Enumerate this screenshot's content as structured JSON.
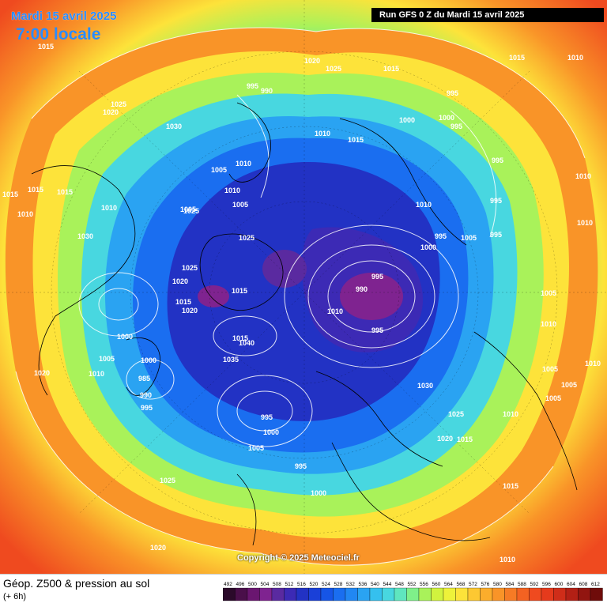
{
  "header": {
    "date": "Mardi 15 avril 2025",
    "time": "7:00 locale",
    "run": "Run GFS 0 Z du Mardi 15 avril 2025"
  },
  "footer": {
    "product": "Géop. Z500 & pression au sol",
    "offset": "(+ 6h)",
    "copyright": "Copyright © 2025 Meteociel.fr"
  },
  "legend": {
    "ticks": [
      "492",
      "496",
      "500",
      "504",
      "508",
      "512",
      "516",
      "520",
      "524",
      "528",
      "532",
      "536",
      "540",
      "544",
      "548",
      "552",
      "556",
      "560",
      "564",
      "568",
      "572",
      "576",
      "580",
      "584",
      "588",
      "592",
      "596",
      "600",
      "604",
      "608",
      "612"
    ],
    "colors": [
      "#2b0a2a",
      "#4a0f4a",
      "#6a1670",
      "#7f2390",
      "#5a2aa0",
      "#3c2ab5",
      "#2232c4",
      "#1a40d8",
      "#1655e6",
      "#1a6ef0",
      "#2187f3",
      "#2aa3f2",
      "#35c0ee",
      "#48d7e0",
      "#5fe6bf",
      "#7ff08a",
      "#a9f25a",
      "#d1f33e",
      "#eef23a",
      "#fde33a",
      "#fdc832",
      "#fbad2c",
      "#f99428",
      "#f67b25",
      "#f36222",
      "#ef4a1f",
      "#e53a1c",
      "#cf2d19",
      "#b32015",
      "#921510",
      "#6f0c0a"
    ]
  },
  "pressure_labels": [
    {
      "v": "1015"
    },
    {
      "v": "1010"
    },
    {
      "v": "1020"
    },
    {
      "v": "1025"
    },
    {
      "v": "1015"
    },
    {
      "v": "990"
    },
    {
      "v": "995"
    },
    {
      "v": "1015"
    },
    {
      "v": "1010"
    },
    {
      "v": "1020"
    },
    {
      "v": "1025"
    },
    {
      "v": "1030"
    },
    {
      "v": "1000"
    },
    {
      "v": "995"
    },
    {
      "v": "1015"
    },
    {
      "v": "1010"
    },
    {
      "v": "1010"
    },
    {
      "v": "1005"
    },
    {
      "v": "1005"
    },
    {
      "v": "1015"
    },
    {
      "v": "1015"
    },
    {
      "v": "1015"
    },
    {
      "v": "1010"
    },
    {
      "v": "1010"
    },
    {
      "v": "1025"
    },
    {
      "v": "1010"
    },
    {
      "v": "1005"
    },
    {
      "v": "1010"
    },
    {
      "v": "995"
    },
    {
      "v": "995"
    },
    {
      "v": "1030"
    },
    {
      "v": "995"
    },
    {
      "v": "1005"
    },
    {
      "v": "1000"
    },
    {
      "v": "1025"
    },
    {
      "v": "1025"
    },
    {
      "v": "995"
    },
    {
      "v": "990"
    },
    {
      "v": "1020"
    },
    {
      "v": "1010"
    },
    {
      "v": "1015"
    },
    {
      "v": "1005"
    },
    {
      "v": "995"
    },
    {
      "v": "1015"
    },
    {
      "v": "1010"
    },
    {
      "v": "1020"
    },
    {
      "v": "1000"
    },
    {
      "v": "1005"
    },
    {
      "v": "1000"
    },
    {
      "v": "985"
    },
    {
      "v": "990"
    },
    {
      "v": "995"
    },
    {
      "v": "1020"
    },
    {
      "v": "1040"
    },
    {
      "v": "1035"
    },
    {
      "v": "1015"
    },
    {
      "v": "995"
    },
    {
      "v": "1000"
    },
    {
      "v": "1005"
    },
    {
      "v": "995"
    },
    {
      "v": "1000"
    },
    {
      "v": "1030"
    },
    {
      "v": "1025"
    },
    {
      "v": "1020"
    },
    {
      "v": "1015"
    },
    {
      "v": "1005"
    },
    {
      "v": "1005"
    },
    {
      "v": "1010"
    },
    {
      "v": "1005"
    },
    {
      "v": "1010"
    },
    {
      "v": "1015"
    },
    {
      "v": "1025"
    },
    {
      "v": "1020"
    },
    {
      "v": "1010"
    },
    {
      "v": "1010"
    },
    {
      "v": "995"
    },
    {
      "v": "1000"
    },
    {
      "v": "995"
    },
    {
      "v": "1010"
    }
  ]
}
